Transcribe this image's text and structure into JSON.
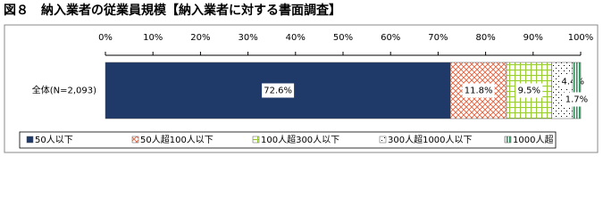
{
  "chart_data": {
    "type": "stacked-bar-horizontal",
    "title": "図８　納入業者の従業員規模【納入業者に対する書面調査】",
    "categories": [
      "全体(N=2,093)"
    ],
    "xlim": [
      0,
      100
    ],
    "xticks": [
      {
        "value": 0,
        "label": "0%"
      },
      {
        "value": 10,
        "label": "10%"
      },
      {
        "value": 20,
        "label": "20%"
      },
      {
        "value": 30,
        "label": "30%"
      },
      {
        "value": 40,
        "label": "40%"
      },
      {
        "value": 50,
        "label": "50%"
      },
      {
        "value": 60,
        "label": "60%"
      },
      {
        "value": 70,
        "label": "70%"
      },
      {
        "value": 80,
        "label": "80%"
      },
      {
        "value": 90,
        "label": "90%"
      },
      {
        "value": 100,
        "label": "100%"
      }
    ],
    "legend": "bottom",
    "series": [
      {
        "name": "50人以下",
        "color": "#1f3a68",
        "pattern": "solid",
        "values": [
          72.6
        ],
        "value_labels": [
          "72.6%"
        ]
      },
      {
        "name": "50人超100人以下",
        "color": "#e8603c",
        "pattern": "crosshatch",
        "values": [
          11.8
        ],
        "value_labels": [
          "11.8%"
        ]
      },
      {
        "name": "100人超300人以下",
        "color": "#9acd32",
        "pattern": "grid",
        "values": [
          9.5
        ],
        "value_labels": [
          "9.5%"
        ]
      },
      {
        "name": "300人超1000人以下",
        "color": "#000000",
        "pattern": "dots",
        "values": [
          4.4
        ],
        "value_labels": [
          "4.4%"
        ]
      },
      {
        "name": "1000人超",
        "color": "#2e8b57",
        "pattern": "stripes",
        "values": [
          1.7
        ],
        "value_labels": [
          "1.7%"
        ]
      }
    ]
  }
}
